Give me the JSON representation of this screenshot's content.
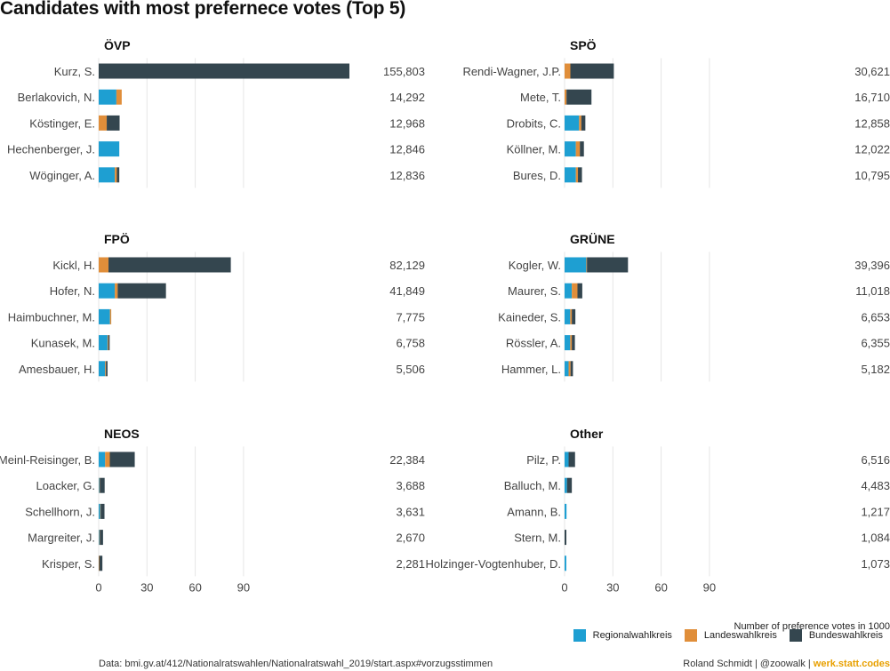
{
  "chart_data": {
    "type": "bar",
    "orientation": "horizontal",
    "stacked": true,
    "title": "Candidates with most prefernece votes (Top 5)",
    "xlabel": "Number of preference votes in 1000",
    "xlim": [
      0,
      155.803
    ],
    "xticks": [
      0,
      30,
      60,
      90
    ],
    "grid": true,
    "legend_position": "bottom-right",
    "series": [
      {
        "name": "Regionalwahlkreis",
        "color": "#1e9fd2"
      },
      {
        "name": "Landeswahlkreis",
        "color": "#e08e3a"
      },
      {
        "name": "Bundeswahlkreis",
        "color": "#34464f"
      }
    ],
    "panels": [
      {
        "party": "ÖVP",
        "candidates": [
          {
            "name": "Kurz, S.",
            "total_label": "155,803",
            "regional": 0.0,
            "landes": 0.0,
            "bundes": 155.8
          },
          {
            "name": "Berlakovich, N.",
            "total_label": "14,292",
            "regional": 11.0,
            "landes": 3.3,
            "bundes": 0.0
          },
          {
            "name": "Köstinger, E.",
            "total_label": "12,968",
            "regional": 0.0,
            "landes": 5.0,
            "bundes": 8.0
          },
          {
            "name": "Hechenberger, J.",
            "total_label": "12,846",
            "regional": 12.8,
            "landes": 0.0,
            "bundes": 0.0
          },
          {
            "name": "Wöginger, A.",
            "total_label": "12,836",
            "regional": 10.0,
            "landes": 1.3,
            "bundes": 1.5
          }
        ]
      },
      {
        "party": "SPÖ",
        "candidates": [
          {
            "name": "Rendi-Wagner, J.P.",
            "total_label": "30,621",
            "regional": 0.0,
            "landes": 3.6,
            "bundes": 27.0
          },
          {
            "name": "Mete, T.",
            "total_label": "16,710",
            "regional": 0.0,
            "landes": 1.2,
            "bundes": 15.5
          },
          {
            "name": "Drobits, C.",
            "total_label": "12,858",
            "regional": 9.0,
            "landes": 1.4,
            "bundes": 2.5
          },
          {
            "name": "Köllner, M.",
            "total_label": "12,022",
            "regional": 7.0,
            "landes": 2.5,
            "bundes": 2.5
          },
          {
            "name": "Bures, D.",
            "total_label": "10,795",
            "regional": 7.0,
            "landes": 1.3,
            "bundes": 2.5
          }
        ]
      },
      {
        "party": "FPÖ",
        "candidates": [
          {
            "name": "Kickl, H.",
            "total_label": "82,129",
            "regional": 0.0,
            "landes": 6.1,
            "bundes": 76.0
          },
          {
            "name": "Hofer, N.",
            "total_label": "41,849",
            "regional": 10.0,
            "landes": 1.8,
            "bundes": 30.0
          },
          {
            "name": "Haimbuchner, M.",
            "total_label": "7,775",
            "regional": 7.0,
            "landes": 0.8,
            "bundes": 0.0
          },
          {
            "name": "Kunasek, M.",
            "total_label": "6,758",
            "regional": 5.5,
            "landes": 0.5,
            "bundes": 0.8
          },
          {
            "name": "Amesbauer, H.",
            "total_label": "5,506",
            "regional": 4.0,
            "landes": 0.5,
            "bundes": 1.0
          }
        ]
      },
      {
        "party": "GRÜNE",
        "candidates": [
          {
            "name": "Kogler, W.",
            "total_label": "39,396",
            "regional": 13.5,
            "landes": 0.4,
            "bundes": 25.5
          },
          {
            "name": "Maurer, S.",
            "total_label": "11,018",
            "regional": 4.5,
            "landes": 3.5,
            "bundes": 3.0
          },
          {
            "name": "Kaineder, S.",
            "total_label": "6,653",
            "regional": 3.5,
            "landes": 1.0,
            "bundes": 2.2
          },
          {
            "name": "Rössler, A.",
            "total_label": "6,355",
            "regional": 3.5,
            "landes": 1.0,
            "bundes": 1.9
          },
          {
            "name": "Hammer, L.",
            "total_label": "5,182",
            "regional": 2.5,
            "landes": 1.2,
            "bundes": 1.5
          }
        ]
      },
      {
        "party": "NEOS",
        "candidates": [
          {
            "name": "Meinl-Reisinger, B.",
            "total_label": "22,384",
            "regional": 4.0,
            "landes": 2.9,
            "bundes": 15.5
          },
          {
            "name": "Loacker, G.",
            "total_label": "3,688",
            "regional": 0.4,
            "landes": 0.3,
            "bundes": 3.0
          },
          {
            "name": "Schellhorn, J.",
            "total_label": "3,631",
            "regional": 0.9,
            "landes": 0.3,
            "bundes": 2.4
          },
          {
            "name": "Margreiter, J.",
            "total_label": "2,670",
            "regional": 0.4,
            "landes": 0.3,
            "bundes": 2.0
          },
          {
            "name": "Krisper, S.",
            "total_label": "2,281",
            "regional": 0.0,
            "landes": 0.3,
            "bundes": 2.0
          }
        ]
      },
      {
        "party": "Other",
        "candidates": [
          {
            "name": "Pilz, P.",
            "total_label": "6,516",
            "regional": 2.5,
            "landes": 0.0,
            "bundes": 4.0
          },
          {
            "name": "Balluch, M.",
            "total_label": "4,483",
            "regional": 1.5,
            "landes": 0.0,
            "bundes": 3.0
          },
          {
            "name": "Amann, B.",
            "total_label": "1,217",
            "regional": 1.2,
            "landes": 0.0,
            "bundes": 0.0
          },
          {
            "name": "Stern, M.",
            "total_label": "1,084",
            "regional": 0.0,
            "landes": 0.0,
            "bundes": 1.1
          },
          {
            "name": "Holzinger-Vogtenhuber, D.",
            "total_label": "1,073",
            "regional": 1.07,
            "landes": 0.0,
            "bundes": 0.0
          }
        ]
      }
    ]
  },
  "caption": "Data: bmi.gv.at/412/Nationalratswahlen/Nationalratswahl_2019/start.aspx#vorzugsstimmen",
  "credit": {
    "text": "Roland Schmidt | @zoowalk | ",
    "brand": "werk.statt.codes"
  }
}
